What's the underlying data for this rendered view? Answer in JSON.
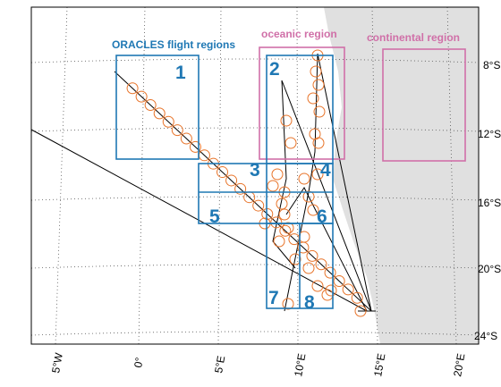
{
  "labels": {
    "flight_regions": "ORACLES flight regions",
    "oceanic": "oceanic region",
    "continental": "continental region"
  },
  "regions": [
    "1",
    "2",
    "3",
    "4",
    "5",
    "6",
    "7",
    "8"
  ],
  "lat_ticks": [
    "8°S",
    "12°S",
    "16°S",
    "20°S",
    "24°S"
  ],
  "lon_ticks": [
    "5°W",
    "0°",
    "5°E",
    "10°E",
    "15°E",
    "20°E"
  ]
}
